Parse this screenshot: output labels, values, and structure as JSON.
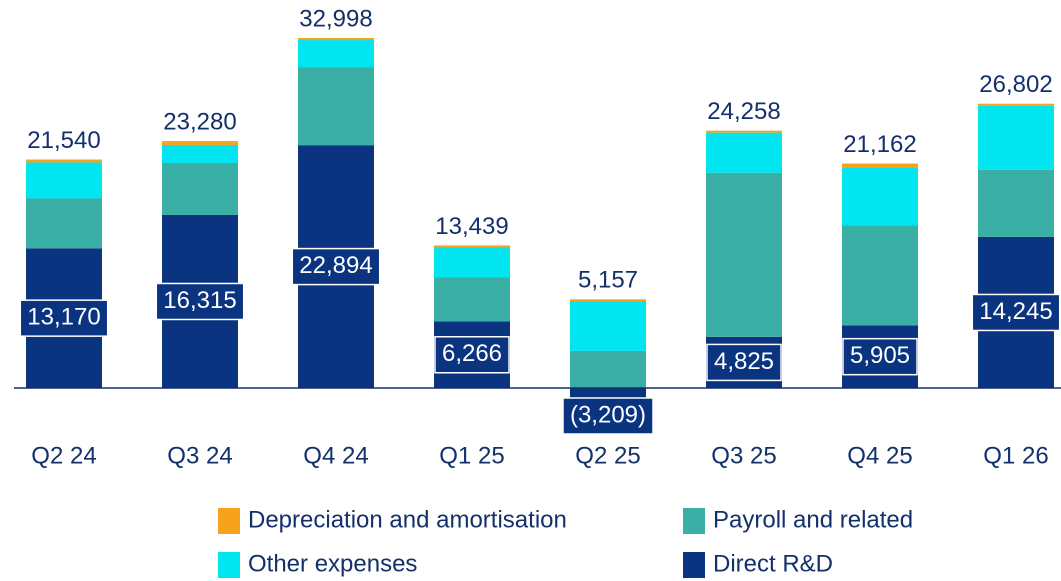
{
  "chart_data": {
    "type": "stacked_bar",
    "categories": [
      "Q2 24",
      "Q3 24",
      "Q4 24",
      "Q1 25",
      "Q2 25",
      "Q3 25",
      "Q4 25",
      "Q1 26"
    ],
    "series": [
      {
        "name": "Direct R&D",
        "color": "#0a3380",
        "values": [
          13170,
          16315,
          22894,
          6266,
          -3209,
          4825,
          5905,
          14245
        ],
        "value_labels": [
          "13,170",
          "16,315",
          "22,894",
          "6,266",
          "(3,209)",
          "4,825",
          "5,905",
          "14,245"
        ]
      },
      {
        "name": "Payroll and related",
        "color": "#3aafa5",
        "values": [
          4700,
          4900,
          7360,
          4150,
          3500,
          15470,
          9430,
          6320
        ]
      },
      {
        "name": "Other expenses",
        "color": "#00e5f0",
        "values": [
          3400,
          1700,
          2550,
          2830,
          4700,
          3780,
          5470,
          6035
        ]
      },
      {
        "name": "Depreciation and amortisation",
        "color": "#f7a21b",
        "values": [
          270,
          365,
          194,
          193,
          166,
          183,
          357,
          202
        ]
      }
    ],
    "totals": {
      "values": [
        21540,
        23280,
        32998,
        13439,
        5157,
        24258,
        21162,
        26802
      ],
      "value_labels": [
        "21,540",
        "23,280",
        "32,998",
        "13,439",
        "5,157",
        "24,258",
        "21,162",
        "26,802"
      ]
    }
  }
}
